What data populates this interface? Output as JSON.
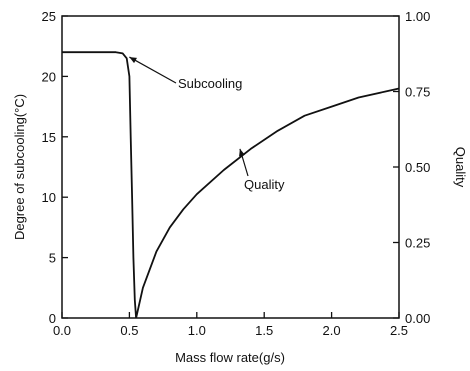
{
  "chart_data": {
    "type": "line",
    "title": "",
    "xlabel": "Mass flow rate(g/s)",
    "ylabel_left": "Degree of subcooling(°C)",
    "ylabel_right": "Quality",
    "xlim": [
      0,
      2.5
    ],
    "ylim_left": [
      0,
      25
    ],
    "ylim_right": [
      0,
      1.0
    ],
    "x_ticks": [
      "0.0",
      "0.5",
      "1.0",
      "1.5",
      "2.0",
      "2.5"
    ],
    "y_left_ticks": [
      "0",
      "5",
      "10",
      "15",
      "20",
      "25"
    ],
    "y_right_ticks": [
      "0.00",
      "0.25",
      "0.50",
      "0.75",
      "1.00"
    ],
    "grid": false,
    "line_color": "#111111",
    "series": [
      {
        "name": "Subcooling",
        "axis": "left",
        "x": [
          0.0,
          0.2,
          0.4,
          0.45,
          0.48,
          0.5,
          0.51,
          0.52,
          0.53,
          0.54,
          0.55
        ],
        "y": [
          22.0,
          22.0,
          22.0,
          21.9,
          21.5,
          20.0,
          15.0,
          10.0,
          5.0,
          1.5,
          0.0
        ]
      },
      {
        "name": "Quality",
        "axis": "right",
        "x": [
          0.55,
          0.6,
          0.7,
          0.8,
          0.9,
          1.0,
          1.2,
          1.4,
          1.6,
          1.8,
          2.0,
          2.2,
          2.4,
          2.5
        ],
        "y": [
          0.0,
          0.1,
          0.22,
          0.3,
          0.36,
          0.41,
          0.49,
          0.56,
          0.62,
          0.67,
          0.7,
          0.73,
          0.75,
          0.76
        ]
      }
    ],
    "annotations": [
      {
        "text": "Subcooling",
        "series": "Subcooling",
        "arrow_to": [
          0.5,
          21.6
        ]
      },
      {
        "text": "Quality",
        "series": "Quality",
        "arrow_to": [
          1.32,
          0.56
        ]
      }
    ]
  }
}
